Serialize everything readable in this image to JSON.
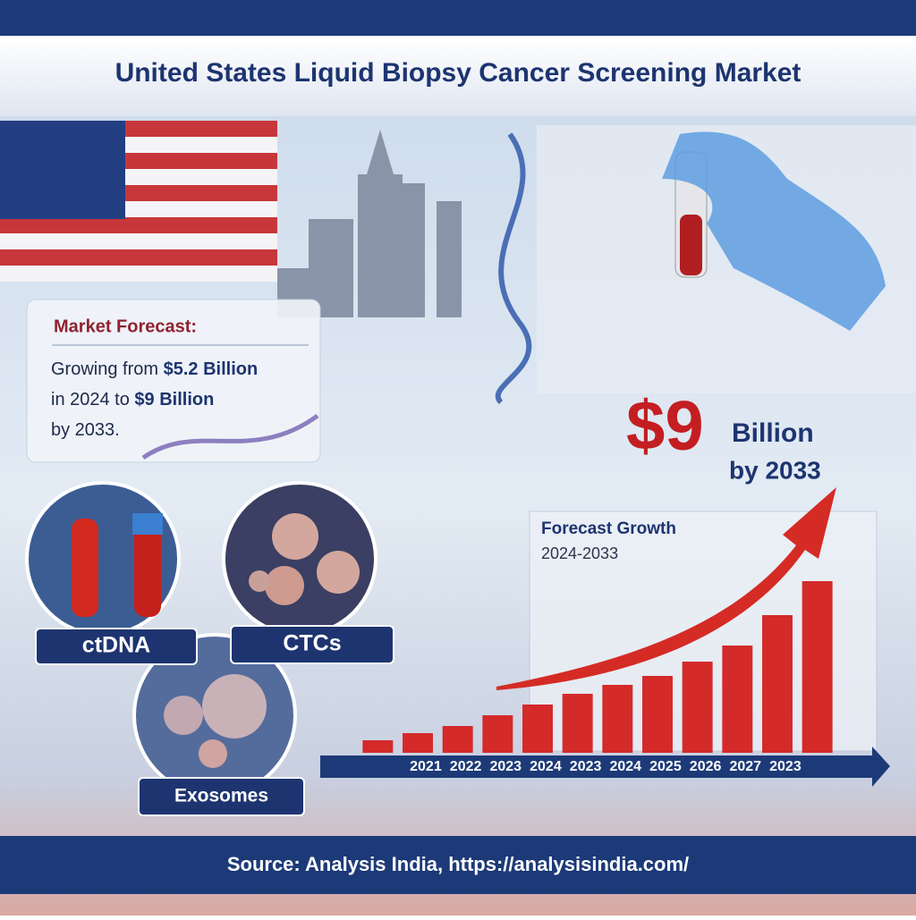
{
  "title": "United States Liquid Biopsy Cancer Screening Market",
  "forecast": {
    "heading": "Market Forecast:",
    "lines": [
      [
        "Growing from ",
        "$5.2 Billion"
      ],
      [
        "in 2024 to ",
        "$9 Billion"
      ],
      [
        "by 2033.",
        ""
      ]
    ]
  },
  "highlight": {
    "amount": "$9",
    "unit": "Billion",
    "year": "by 2033"
  },
  "biomarkers": [
    "ctDNA",
    "CTCs",
    "Exosomes"
  ],
  "chart_data": {
    "type": "bar",
    "title": "Forecast Growth",
    "subtitle": "2024-2033",
    "categories": [
      null,
      "2021",
      "2022",
      "2023",
      "2024",
      "2023",
      "2024",
      "2025",
      "2026",
      "2027",
      "2023",
      null
    ],
    "values": [
      14,
      22,
      30,
      42,
      54,
      66,
      76,
      86,
      102,
      120,
      154,
      192
    ],
    "color": "#d42a2a"
  },
  "source": "Source: Analysis India, https://analysisindia.com/"
}
